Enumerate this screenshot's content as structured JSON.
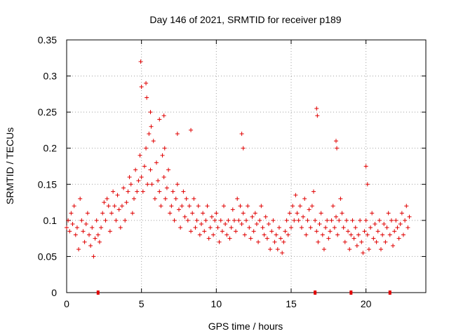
{
  "chart_data": {
    "type": "scatter",
    "title": "Day 146 of 2021, SRMTID for receiver p189",
    "xlabel": "GPS time / hours",
    "ylabel": "SRMTID / TECUs",
    "xlim": [
      0,
      24
    ],
    "ylim": [
      0,
      0.35
    ],
    "xticks": [
      0,
      5,
      10,
      15,
      20
    ],
    "xtick_labels": [
      "0",
      "5",
      "10",
      "15",
      "20"
    ],
    "yticks": [
      0,
      0.05,
      0.1,
      0.15,
      0.2,
      0.25,
      0.3,
      0.35
    ],
    "ytick_labels": [
      "0",
      "0.05",
      "0.1",
      "0.15",
      "0.2",
      "0.25",
      "0.3",
      "0.35"
    ],
    "grid": true,
    "marker": "+",
    "marker_color": "#e00000",
    "series": [
      {
        "name": "SRMTID",
        "x": [
          0.0,
          0.1,
          0.2,
          0.3,
          0.4,
          0.5,
          0.6,
          0.7,
          0.8,
          0.9,
          1.0,
          1.1,
          1.2,
          1.3,
          1.4,
          1.5,
          1.6,
          1.7,
          1.8,
          1.9,
          2.0,
          2.1,
          2.2,
          2.3,
          2.4,
          2.5,
          2.6,
          2.7,
          2.8,
          2.9,
          3.0,
          3.1,
          3.2,
          3.3,
          3.4,
          3.5,
          3.6,
          3.7,
          3.8,
          3.9,
          4.0,
          4.1,
          4.2,
          4.3,
          4.4,
          4.5,
          4.6,
          4.7,
          4.8,
          4.9,
          5.0,
          5.1,
          5.2,
          5.3,
          5.4,
          5.5,
          5.6,
          5.7,
          5.8,
          5.9,
          6.0,
          6.1,
          6.2,
          6.3,
          6.4,
          6.5,
          6.6,
          6.7,
          6.8,
          6.9,
          7.0,
          7.1,
          7.2,
          7.3,
          7.4,
          7.5,
          7.6,
          7.7,
          7.8,
          7.9,
          8.0,
          8.1,
          8.2,
          8.3,
          8.4,
          8.5,
          8.6,
          8.7,
          8.8,
          8.9,
          9.0,
          9.1,
          9.2,
          9.3,
          9.4,
          9.5,
          9.6,
          9.7,
          9.8,
          9.9,
          10.0,
          10.1,
          10.2,
          10.3,
          10.4,
          10.5,
          10.6,
          10.7,
          10.8,
          10.9,
          11.0,
          11.1,
          11.2,
          11.3,
          11.4,
          11.5,
          11.6,
          11.7,
          11.8,
          11.9,
          12.0,
          12.1,
          12.2,
          12.3,
          12.4,
          12.5,
          12.6,
          12.7,
          12.8,
          12.9,
          13.0,
          13.1,
          13.2,
          13.3,
          13.4,
          13.5,
          13.6,
          13.7,
          13.8,
          13.9,
          14.0,
          14.1,
          14.2,
          14.3,
          14.4,
          14.5,
          14.6,
          14.7,
          14.8,
          14.9,
          15.0,
          15.1,
          15.2,
          15.3,
          15.4,
          15.5,
          15.6,
          15.7,
          15.8,
          15.9,
          16.0,
          16.1,
          16.2,
          16.3,
          16.4,
          16.5,
          16.6,
          16.7,
          16.8,
          16.9,
          17.0,
          17.1,
          17.2,
          17.3,
          17.4,
          17.5,
          17.6,
          17.7,
          17.8,
          17.9,
          18.0,
          18.1,
          18.2,
          18.3,
          18.4,
          18.5,
          18.6,
          18.7,
          18.8,
          18.9,
          19.0,
          19.1,
          19.2,
          19.3,
          19.4,
          19.5,
          19.6,
          19.7,
          19.8,
          19.9,
          20.0,
          20.1,
          20.2,
          20.3,
          20.4,
          20.5,
          20.6,
          20.7,
          20.8,
          20.9,
          21.0,
          21.1,
          21.2,
          21.3,
          21.4,
          21.5,
          21.6,
          21.7,
          21.8,
          21.9,
          22.0,
          22.1,
          22.2,
          22.3,
          22.4,
          22.5,
          22.6,
          22.7,
          22.8,
          22.9,
          4.95,
          5.0,
          5.3,
          5.35,
          5.6,
          5.65,
          6.2,
          6.5,
          6.55,
          7.4,
          8.3,
          11.7,
          11.8,
          16.7,
          16.75,
          18.0,
          18.05,
          20.0,
          20.1
        ],
        "y": [
          0.09,
          0.1,
          0.085,
          0.11,
          0.095,
          0.12,
          0.08,
          0.09,
          0.06,
          0.13,
          0.1,
          0.085,
          0.07,
          0.095,
          0.11,
          0.08,
          0.065,
          0.09,
          0.05,
          0.075,
          0.1,
          0.08,
          0.07,
          0.09,
          0.11,
          0.125,
          0.1,
          0.13,
          0.12,
          0.085,
          0.11,
          0.14,
          0.12,
          0.1,
          0.135,
          0.115,
          0.09,
          0.12,
          0.145,
          0.1,
          0.125,
          0.14,
          0.16,
          0.15,
          0.11,
          0.13,
          0.17,
          0.14,
          0.155,
          0.19,
          0.16,
          0.14,
          0.175,
          0.2,
          0.15,
          0.22,
          0.17,
          0.15,
          0.21,
          0.13,
          0.18,
          0.155,
          0.14,
          0.12,
          0.19,
          0.16,
          0.13,
          0.145,
          0.17,
          0.11,
          0.12,
          0.14,
          0.1,
          0.13,
          0.15,
          0.115,
          0.09,
          0.12,
          0.14,
          0.105,
          0.13,
          0.1,
          0.12,
          0.085,
          0.11,
          0.13,
          0.09,
          0.1,
          0.12,
          0.08,
          0.095,
          0.11,
          0.085,
          0.1,
          0.12,
          0.075,
          0.09,
          0.105,
          0.08,
          0.1,
          0.11,
          0.09,
          0.07,
          0.1,
          0.085,
          0.12,
          0.095,
          0.08,
          0.1,
          0.075,
          0.09,
          0.115,
          0.1,
          0.085,
          0.13,
          0.1,
          0.12,
          0.095,
          0.11,
          0.08,
          0.1,
          0.12,
          0.09,
          0.075,
          0.105,
          0.085,
          0.11,
          0.095,
          0.07,
          0.1,
          0.12,
          0.09,
          0.08,
          0.105,
          0.075,
          0.095,
          0.06,
          0.085,
          0.1,
          0.07,
          0.08,
          0.06,
          0.09,
          0.075,
          0.055,
          0.07,
          0.085,
          0.1,
          0.08,
          0.11,
          0.09,
          0.12,
          0.1,
          0.135,
          0.11,
          0.1,
          0.12,
          0.09,
          0.105,
          0.13,
          0.08,
          0.1,
          0.115,
          0.09,
          0.12,
          0.14,
          0.1,
          0.085,
          0.07,
          0.095,
          0.11,
          0.08,
          0.06,
          0.09,
          0.1,
          0.075,
          0.085,
          0.1,
          0.12,
          0.09,
          0.105,
          0.08,
          0.1,
          0.13,
          0.11,
          0.09,
          0.07,
          0.1,
          0.085,
          0.06,
          0.08,
          0.1,
          0.075,
          0.09,
          0.065,
          0.08,
          0.1,
          0.07,
          0.055,
          0.085,
          0.1,
          0.08,
          0.06,
          0.09,
          0.11,
          0.075,
          0.095,
          0.07,
          0.085,
          0.1,
          0.06,
          0.08,
          0.095,
          0.07,
          0.09,
          0.11,
          0.08,
          0.1,
          0.065,
          0.085,
          0.1,
          0.09,
          0.075,
          0.095,
          0.11,
          0.08,
          0.1,
          0.12,
          0.09,
          0.105,
          0.32,
          0.285,
          0.29,
          0.27,
          0.25,
          0.23,
          0.24,
          0.245,
          0.2,
          0.22,
          0.225,
          0.22,
          0.2,
          0.255,
          0.245,
          0.21,
          0.2,
          0.175,
          0.15
        ]
      }
    ],
    "markers_on_x_axis": [
      2.1,
      16.6,
      19.0,
      21.6
    ]
  }
}
